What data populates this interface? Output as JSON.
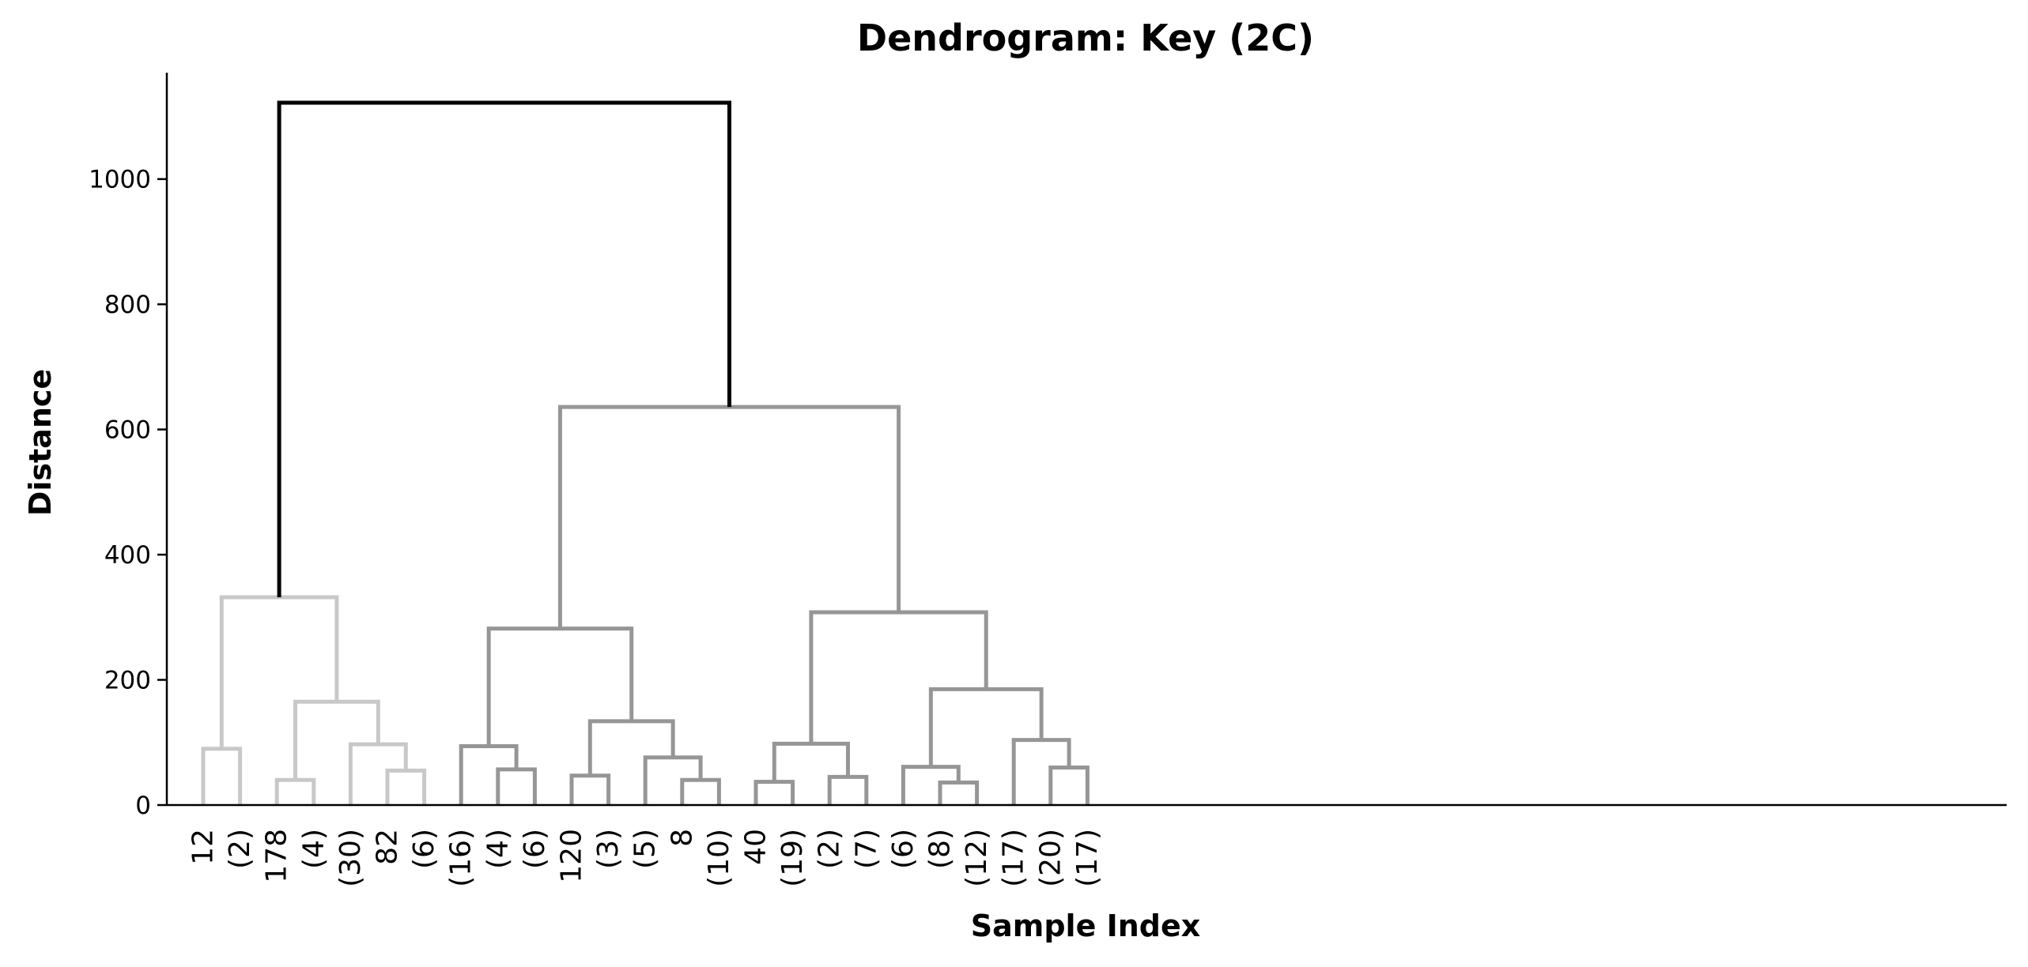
{
  "chart_data": {
    "type": "dendrogram",
    "title": "Dendrogram: Key (2C)",
    "xlabel": "Sample Index",
    "ylabel": "Distance",
    "ylim": [
      0,
      1170
    ],
    "yticks": [
      0,
      200,
      400,
      600,
      800,
      1000
    ],
    "grid": false,
    "colors": {
      "cluster_light": "#c8c8c8",
      "cluster_dark": "#969696",
      "root": "#000000"
    },
    "leaves": [
      "12",
      "(2)",
      "178",
      "(4)",
      "(30)",
      "82",
      "(6)",
      "(16)",
      "(4)",
      "(6)",
      "120",
      "(3)",
      "(5)",
      "8",
      "(10)",
      "40",
      "(19)",
      "(2)",
      "(7)",
      "(6)",
      "(8)",
      "(12)",
      "(17)",
      "(20)",
      "(17)"
    ],
    "merges": [
      {
        "left": "L0",
        "right": "L1",
        "height": 90,
        "color": "cluster_light"
      },
      {
        "left": "L2",
        "right": "L3",
        "height": 40,
        "color": "cluster_light"
      },
      {
        "left": "L5",
        "right": "L6",
        "height": 55,
        "color": "cluster_light"
      },
      {
        "left": "L4",
        "right": "M2",
        "height": 97,
        "color": "cluster_light"
      },
      {
        "left": "M1",
        "right": "M3",
        "height": 165,
        "color": "cluster_light"
      },
      {
        "left": "M0",
        "right": "M4",
        "height": 332,
        "color": "cluster_light"
      },
      {
        "left": "L8",
        "right": "L9",
        "height": 57,
        "color": "cluster_dark"
      },
      {
        "left": "L7",
        "right": "M6",
        "height": 94,
        "color": "cluster_dark"
      },
      {
        "left": "L10",
        "right": "L11",
        "height": 47,
        "color": "cluster_dark"
      },
      {
        "left": "L13",
        "right": "L14",
        "height": 40,
        "color": "cluster_dark"
      },
      {
        "left": "L12",
        "right": "M9",
        "height": 76,
        "color": "cluster_dark"
      },
      {
        "left": "M8",
        "right": "M10",
        "height": 134,
        "color": "cluster_dark"
      },
      {
        "left": "M7",
        "right": "M11",
        "height": 282,
        "color": "cluster_dark"
      },
      {
        "left": "L15",
        "right": "L16",
        "height": 37,
        "color": "cluster_dark"
      },
      {
        "left": "L17",
        "right": "L18",
        "height": 45,
        "color": "cluster_dark"
      },
      {
        "left": "M13",
        "right": "M14",
        "height": 98,
        "color": "cluster_dark"
      },
      {
        "left": "L20",
        "right": "L21",
        "height": 36,
        "color": "cluster_dark"
      },
      {
        "left": "L19",
        "right": "M16",
        "height": 61,
        "color": "cluster_dark"
      },
      {
        "left": "L23",
        "right": "L24",
        "height": 60,
        "color": "cluster_dark"
      },
      {
        "left": "L22",
        "right": "M18",
        "height": 104,
        "color": "cluster_dark"
      },
      {
        "left": "M17",
        "right": "M19",
        "height": 185,
        "color": "cluster_dark"
      },
      {
        "left": "M15",
        "right": "M20",
        "height": 308,
        "color": "cluster_dark"
      },
      {
        "left": "M12",
        "right": "M21",
        "height": 636,
        "color": "cluster_dark"
      },
      {
        "left": "M5",
        "right": "M22",
        "height": 1122,
        "color": "root"
      }
    ]
  }
}
